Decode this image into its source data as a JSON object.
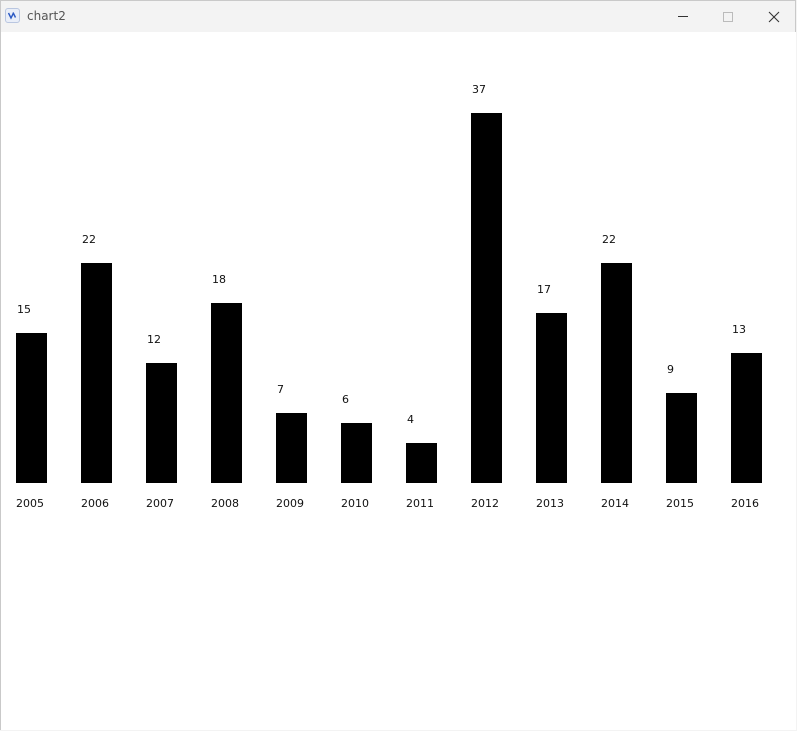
{
  "window": {
    "title": "chart2",
    "icon": "app-icon",
    "controls": [
      "minimize-icon",
      "maximize-icon",
      "close-icon"
    ]
  },
  "chart_data": {
    "type": "bar",
    "categories": [
      "2005",
      "2006",
      "2007",
      "2008",
      "2009",
      "2010",
      "2011",
      "2012",
      "2013",
      "2014",
      "2015",
      "2016"
    ],
    "values": [
      15,
      22,
      12,
      18,
      7,
      6,
      4,
      37,
      17,
      22,
      9,
      13
    ],
    "bar_color": "#000000",
    "title": "",
    "xlabel": "",
    "ylabel": "",
    "grid": false,
    "legend": "none"
  }
}
